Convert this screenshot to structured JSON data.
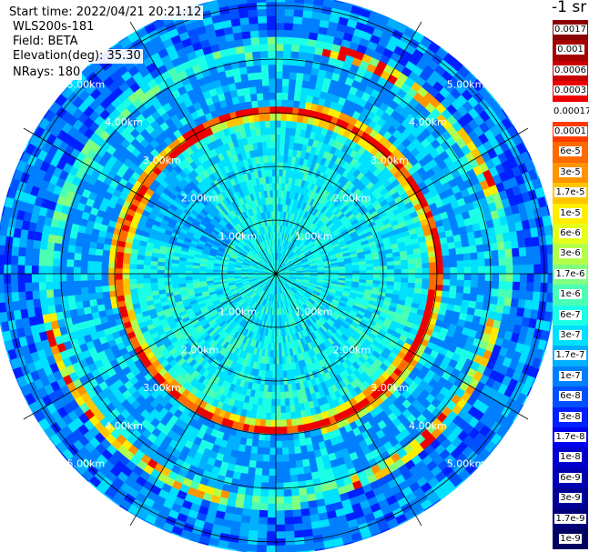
{
  "header": {
    "start_time": "Start time: 2022/04/21 20:21:12",
    "instrument": "WLS200s-181",
    "field": "Field: BETA",
    "elevation": "Elevation(deg): 35.30",
    "nrays": "NRays: 180"
  },
  "colorbar": {
    "unit_label": "-1 sr",
    "levels": [
      {
        "label": "0.0017",
        "color": "#8b0000"
      },
      {
        "label": "0.001",
        "color": "#a50000"
      },
      {
        "label": "0.0006",
        "color": "#c80000"
      },
      {
        "label": "0.0003",
        "color": "#ee0000"
      },
      {
        "label": "0.00017",
        "color": "#ffffff"
      },
      {
        "label": "0.0001",
        "color": "#ff3a00"
      },
      {
        "label": "6e-5",
        "color": "#ff6a00"
      },
      {
        "label": "3e-5",
        "color": "#ff9400"
      },
      {
        "label": "1.7e-5",
        "color": "#ffc400"
      },
      {
        "label": "1e-5",
        "color": "#ffee00"
      },
      {
        "label": "6e-6",
        "color": "#e6ff1a"
      },
      {
        "label": "3e-6",
        "color": "#b4ff4a"
      },
      {
        "label": "1.7e-6",
        "color": "#80ff80"
      },
      {
        "label": "1e-6",
        "color": "#4affb4"
      },
      {
        "label": "6e-7",
        "color": "#1affe6"
      },
      {
        "label": "3e-7",
        "color": "#00e0ff"
      },
      {
        "label": "1.7e-7",
        "color": "#00b0ff"
      },
      {
        "label": "1e-7",
        "color": "#0080ff"
      },
      {
        "label": "6e-8",
        "color": "#0050ff"
      },
      {
        "label": "3e-8",
        "color": "#0020ff"
      },
      {
        "label": "1.7e-8",
        "color": "#0000ee"
      },
      {
        "label": "1e-8",
        "color": "#0000cd"
      },
      {
        "label": "6e-9",
        "color": "#0000b0"
      },
      {
        "label": "3e-9",
        "color": "#000096"
      },
      {
        "label": "1.7e-9",
        "color": "#00007a"
      },
      {
        "label": "1e-9",
        "color": "#000060"
      }
    ]
  },
  "chart_data": {
    "type": "heatmap",
    "projection": "polar",
    "field": "BETA",
    "rays": 180,
    "range_ring_labels_km": [
      1,
      2,
      3,
      4,
      5
    ],
    "range_ring_labels": [
      "1.00km",
      "2.00km",
      "3.00km",
      "4.00km",
      "5.00km"
    ],
    "spokes": 12,
    "max_range_km": 5.0,
    "color_scale": "log",
    "features": [
      {
        "description_values": "strong ring",
        "range_km": 2.9,
        "value": "0.0003"
      },
      {
        "description_values": "outer ring",
        "range_km": 4.2,
        "value": "1.7e-5"
      },
      {
        "description_values": "inner disk",
        "range_km_max": 2.8,
        "value": "6e-7"
      }
    ]
  }
}
